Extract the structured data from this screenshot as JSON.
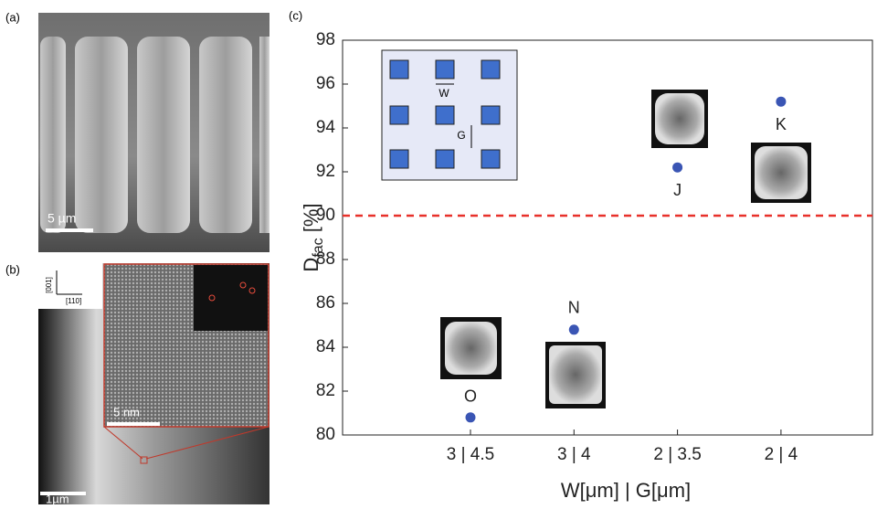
{
  "figure": {
    "panel_a": "(a)",
    "scale_a": "5 µm",
    "panel_b": "(b)",
    "axis_001": "[001]",
    "axis_110": "[110]",
    "scale_b_inset": "5 nm",
    "scale_b": "1µm",
    "panel_c": "(c)"
  },
  "chart_data": {
    "type": "scatter",
    "categories": [
      "3 | 4.5",
      "3 | 4",
      "2 | 3.5",
      "2 | 4"
    ],
    "series": [
      {
        "color": "#3a55b4",
        "values": [
          80.8,
          84.8,
          92.2,
          95.2
        ],
        "point_labels": [
          "O",
          "N",
          "J",
          "K"
        ]
      }
    ],
    "ylim": [
      80,
      98
    ],
    "yticks": [
      80,
      82,
      84,
      86,
      88,
      90,
      92,
      94,
      96,
      98
    ],
    "ylabel": {
      "main": "D",
      "sub": "fac",
      "rest": " [%]"
    },
    "xlabel": "W[μm] | G[μm]",
    "threshold": {
      "value": 90,
      "color": "#e8312a"
    },
    "inset": {
      "w_label": "W",
      "g_label": "G"
    }
  }
}
